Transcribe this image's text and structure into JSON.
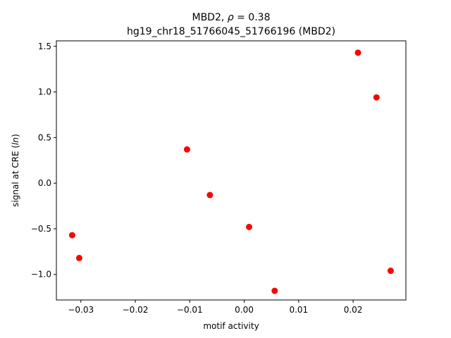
{
  "chart_data": {
    "type": "scatter",
    "title_line1": "MBD2, ρ = 0.38",
    "title_line2": "hg19_chr18_51766045_51766196 (MBD2)",
    "xlabel": "motif activity",
    "ylabel": "signal at CRE (ln)",
    "xlim": [
      -0.0345,
      0.0297
    ],
    "ylim": [
      -1.28,
      1.56
    ],
    "xticks": [
      -0.03,
      -0.02,
      -0.01,
      0.0,
      0.01,
      0.02
    ],
    "xtick_labels": [
      "−0.03",
      "−0.02",
      "−0.01",
      "0.00",
      "0.01",
      "0.02"
    ],
    "yticks": [
      -1.0,
      -0.5,
      0.0,
      0.5,
      1.0,
      1.5
    ],
    "ytick_labels": [
      "−1.0",
      "−0.5",
      "0.0",
      "0.5",
      "1.0",
      "1.5"
    ],
    "marker_color": "#ff0000",
    "grid": false,
    "points": [
      {
        "x": -0.0316,
        "y": -0.57
      },
      {
        "x": -0.0303,
        "y": -0.82
      },
      {
        "x": -0.0105,
        "y": 0.37
      },
      {
        "x": -0.0063,
        "y": -0.13
      },
      {
        "x": 0.0009,
        "y": -0.48
      },
      {
        "x": 0.0056,
        "y": -1.18
      },
      {
        "x": 0.0209,
        "y": 1.43
      },
      {
        "x": 0.0243,
        "y": 0.94
      },
      {
        "x": 0.0269,
        "y": -0.96
      }
    ]
  }
}
